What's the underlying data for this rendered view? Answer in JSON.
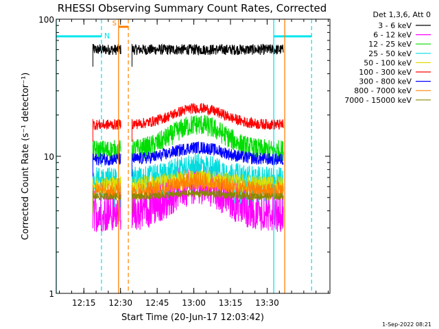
{
  "chart_data": {
    "type": "line",
    "title": "RHESSI Observing Summary Count Rates, Corrected",
    "xlabel": "Start Time (20-Jun-17 12:03:42)",
    "ylabel": "Corrected Count Rate (s⁻¹ detector⁻¹)",
    "footer": "1-Sep-2022 08:21",
    "y_scale": "log",
    "ylim": [
      1,
      100
    ],
    "y_ticks": [
      {
        "value": 1,
        "label": "1"
      },
      {
        "value": 10,
        "label": "10"
      },
      {
        "value": 100,
        "label": "100"
      }
    ],
    "xlim_minutes": [
      0,
      112
    ],
    "x_ticks": [
      {
        "minute": 11.3,
        "label": "12:15"
      },
      {
        "minute": 26.3,
        "label": "12:30"
      },
      {
        "minute": 41.3,
        "label": "12:45"
      },
      {
        "minute": 56.3,
        "label": "13:00"
      },
      {
        "minute": 71.3,
        "label": "13:15"
      },
      {
        "minute": 86.3,
        "label": "13:30"
      }
    ],
    "legend_title": "Det 1,3,6, Att 0",
    "legend_position": "right",
    "series": [
      {
        "name": "3 - 6 keV",
        "color": "#000000",
        "base": 60,
        "peak": 0,
        "noise": 0.03
      },
      {
        "name": "6 - 12 keV",
        "color": "#ff00ff",
        "base": 4.0,
        "peak": 0.6,
        "noise": 0.12
      },
      {
        "name": "12 - 25 keV",
        "color": "#00dd00",
        "base": 11.0,
        "peak": 0.55,
        "noise": 0.06
      },
      {
        "name": "25 - 50 keV",
        "color": "#00dddd",
        "base": 7.0,
        "peak": 0.25,
        "noise": 0.06
      },
      {
        "name": "50 - 100 keV",
        "color": "#dddd00",
        "base": 6.2,
        "peak": 0.12,
        "noise": 0.05
      },
      {
        "name": "100 - 300 keV",
        "color": "#ff0000",
        "base": 17.0,
        "peak": 0.32,
        "noise": 0.03
      },
      {
        "name": "300 - 800 keV",
        "color": "#0000ff",
        "base": 9.5,
        "peak": 0.22,
        "noise": 0.035
      },
      {
        "name": "800 - 7000 keV",
        "color": "#ff8000",
        "base": 5.6,
        "peak": 0.18,
        "noise": 0.05
      },
      {
        "name": "7000 - 15000 keV",
        "color": "#888800",
        "base": 5.1,
        "peak": 0.05,
        "noise": 0.02
      }
    ],
    "data_intervals_minutes": [
      [
        15,
        26.5
      ],
      [
        31,
        93
      ]
    ],
    "eclipse_markers": {
      "color": "#00e5ee",
      "solid_minutes": [
        0,
        89
      ],
      "dashed_minutes": [
        18.5,
        104.5
      ],
      "bar_level": 75,
      "bar_spans": [
        [
          0,
          18.5
        ],
        [
          89,
          104.5
        ]
      ],
      "label": "N"
    },
    "saa_markers": {
      "color": "#ff8000",
      "solid_minutes": [
        25.5,
        93.5
      ],
      "dashed_minutes": [
        29.5
      ],
      "bar_level": 88,
      "bar_spans": [
        [
          25.5,
          29.5
        ]
      ],
      "label": "S"
    }
  }
}
